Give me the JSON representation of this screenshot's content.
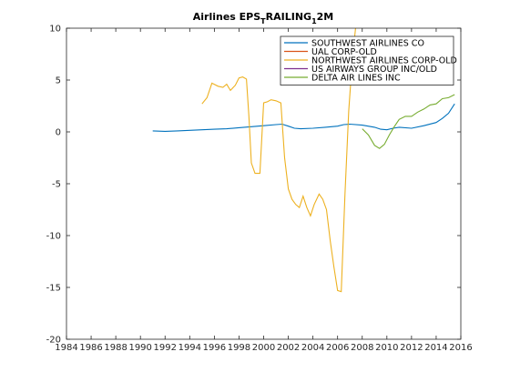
{
  "chart_data": {
    "type": "line",
    "title_parts": [
      "Airlines EPS",
      "T",
      "RAILING",
      "1",
      "2M"
    ],
    "xlabel": "",
    "ylabel": "",
    "xlim": [
      1984,
      2016
    ],
    "ylim": [
      -20,
      10
    ],
    "xticks": [
      1984,
      1986,
      1988,
      1990,
      1992,
      1994,
      1996,
      1998,
      2000,
      2002,
      2004,
      2006,
      2008,
      2010,
      2012,
      2014,
      2016
    ],
    "yticks": [
      10,
      5,
      0,
      -5,
      -10,
      -15,
      -20
    ],
    "grid": false,
    "legend_position": "top-right",
    "series": [
      {
        "name": "SOUTHWEST AIRLINES CO",
        "color": "#0072bd",
        "points": [
          [
            1991.0,
            0.1
          ],
          [
            1992.0,
            0.05
          ],
          [
            1993.0,
            0.1
          ],
          [
            1994.0,
            0.15
          ],
          [
            1995.0,
            0.2
          ],
          [
            1996.0,
            0.25
          ],
          [
            1997.0,
            0.3
          ],
          [
            1998.0,
            0.4
          ],
          [
            1999.0,
            0.5
          ],
          [
            2000.0,
            0.6
          ],
          [
            2001.0,
            0.7
          ],
          [
            2001.5,
            0.75
          ],
          [
            2002.0,
            0.55
          ],
          [
            2002.5,
            0.35
          ],
          [
            2003.0,
            0.3
          ],
          [
            2004.0,
            0.35
          ],
          [
            2005.0,
            0.45
          ],
          [
            2006.0,
            0.55
          ],
          [
            2006.5,
            0.7
          ],
          [
            2007.0,
            0.75
          ],
          [
            2008.0,
            0.65
          ],
          [
            2009.0,
            0.45
          ],
          [
            2009.5,
            0.25
          ],
          [
            2010.0,
            0.2
          ],
          [
            2010.5,
            0.35
          ],
          [
            2011.0,
            0.45
          ],
          [
            2012.0,
            0.35
          ],
          [
            2013.0,
            0.6
          ],
          [
            2014.0,
            0.9
          ],
          [
            2014.5,
            1.3
          ],
          [
            2015.0,
            1.8
          ],
          [
            2015.5,
            2.7
          ]
        ]
      },
      {
        "name": "UAL CORP-OLD",
        "color": "#d95319",
        "points": []
      },
      {
        "name": "NORTHWEST AIRLINES CORP-OLD",
        "color": "#edb120",
        "points": [
          [
            1995.0,
            2.7
          ],
          [
            1995.4,
            3.3
          ],
          [
            1995.8,
            4.7
          ],
          [
            1996.3,
            4.4
          ],
          [
            1996.7,
            4.3
          ],
          [
            1997.0,
            4.6
          ],
          [
            1997.3,
            4.0
          ],
          [
            1997.7,
            4.5
          ],
          [
            1998.0,
            5.2
          ],
          [
            1998.3,
            5.3
          ],
          [
            1998.6,
            5.1
          ],
          [
            1998.8,
            1.5
          ],
          [
            1999.0,
            -3.0
          ],
          [
            1999.3,
            -4.0
          ],
          [
            1999.7,
            -4.0
          ],
          [
            2000.0,
            2.8
          ],
          [
            2000.3,
            2.9
          ],
          [
            2000.6,
            3.1
          ],
          [
            2001.0,
            3.0
          ],
          [
            2001.4,
            2.8
          ],
          [
            2001.7,
            -2.5
          ],
          [
            2002.0,
            -5.5
          ],
          [
            2002.3,
            -6.5
          ],
          [
            2002.6,
            -7.0
          ],
          [
            2002.9,
            -7.3
          ],
          [
            2003.2,
            -6.2
          ],
          [
            2003.5,
            -7.3
          ],
          [
            2003.8,
            -8.1
          ],
          [
            2004.1,
            -7.0
          ],
          [
            2004.5,
            -6.0
          ],
          [
            2004.8,
            -6.5
          ],
          [
            2005.1,
            -7.5
          ],
          [
            2005.4,
            -10.5
          ],
          [
            2005.7,
            -13.0
          ],
          [
            2006.0,
            -15.3
          ],
          [
            2006.3,
            -15.4
          ],
          [
            2006.6,
            -6.0
          ],
          [
            2006.9,
            2.0
          ],
          [
            2007.2,
            7.0
          ],
          [
            2007.5,
            10.5
          ]
        ]
      },
      {
        "name": "US AIRWAYS GROUP INC/OLD",
        "color": "#7e2f8e",
        "points": []
      },
      {
        "name": "DELTA AIR LINES INC",
        "color": "#77ac30",
        "points": [
          [
            2008.0,
            0.3
          ],
          [
            2008.5,
            -0.3
          ],
          [
            2009.0,
            -1.3
          ],
          [
            2009.4,
            -1.6
          ],
          [
            2009.8,
            -1.2
          ],
          [
            2010.2,
            -0.3
          ],
          [
            2010.6,
            0.5
          ],
          [
            2011.0,
            1.2
          ],
          [
            2011.5,
            1.5
          ],
          [
            2012.0,
            1.5
          ],
          [
            2012.5,
            1.9
          ],
          [
            2013.0,
            2.2
          ],
          [
            2013.5,
            2.6
          ],
          [
            2014.0,
            2.7
          ],
          [
            2014.5,
            3.2
          ],
          [
            2015.0,
            3.3
          ],
          [
            2015.5,
            3.6
          ]
        ]
      }
    ]
  }
}
